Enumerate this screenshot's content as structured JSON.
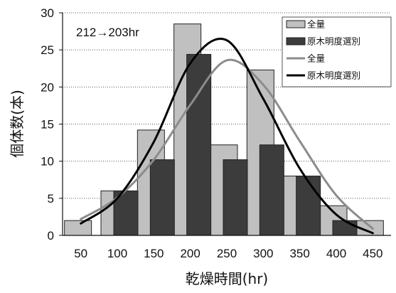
{
  "chart_data": {
    "type": "bar",
    "title": "",
    "xlabel": "乾燥時間(hr)",
    "ylabel": "個体数(本)",
    "annotation": "212→203hr",
    "categories": [
      "50",
      "100",
      "150",
      "200",
      "250",
      "300",
      "350",
      "400",
      "450"
    ],
    "ylim": [
      0,
      30
    ],
    "yticks": [
      0,
      5,
      10,
      15,
      20,
      25,
      30
    ],
    "grid": true,
    "legend_position": "top-right",
    "series": [
      {
        "name": "全量",
        "kind": "bar",
        "color": "#c0c0c0",
        "values": [
          2,
          6,
          14.2,
          28.5,
          12.2,
          22.3,
          8,
          4,
          2
        ]
      },
      {
        "name": "原木明度選別",
        "kind": "bar",
        "color": "#3c3c3c",
        "values": [
          0,
          6,
          10.2,
          24.4,
          10.2,
          12.2,
          8,
          2,
          0
        ]
      },
      {
        "name": "全量",
        "kind": "line",
        "color": "#8c8c8c",
        "x": [
          50,
          100,
          150,
          200,
          250,
          300,
          350,
          400,
          450
        ],
        "values": [
          2.2,
          5.1,
          10.2,
          17.6,
          23.6,
          20.3,
          12.7,
          5.4,
          0.9
        ]
      },
      {
        "name": "原木明度選別",
        "kind": "line",
        "color": "#000000",
        "x": [
          50,
          100,
          150,
          200,
          250,
          300,
          350,
          400,
          450
        ],
        "values": [
          1.6,
          5.0,
          12.6,
          23.2,
          26.3,
          18.4,
          9.0,
          2.8,
          0.3
        ]
      }
    ]
  }
}
